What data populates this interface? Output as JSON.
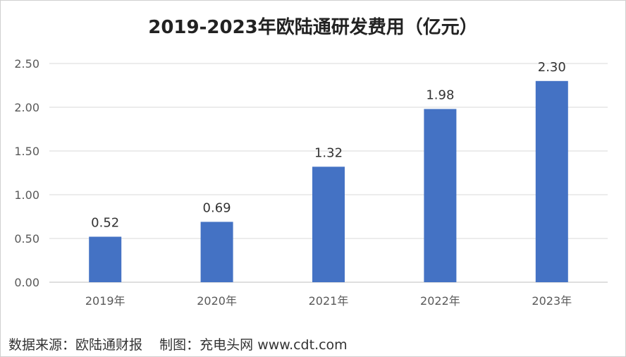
{
  "chart_data": {
    "type": "bar",
    "title": "2019-2023年欧陆通研发费用（亿元）",
    "categories": [
      "2019年",
      "2020年",
      "2021年",
      "2022年",
      "2023年"
    ],
    "values": [
      0.52,
      0.69,
      1.32,
      1.98,
      2.3
    ],
    "data_labels": [
      "0.52",
      "0.69",
      "1.32",
      "1.98",
      "2.30"
    ],
    "y_ticks": [
      "0.00",
      "0.50",
      "1.00",
      "1.50",
      "2.00",
      "2.50"
    ],
    "ylim": [
      0,
      2.5
    ],
    "grid": true,
    "legend": "none",
    "bar_color": "#4472C4"
  },
  "footer": "数据来源：欧陆通财报    制图：充电头网 www.cdt.com"
}
